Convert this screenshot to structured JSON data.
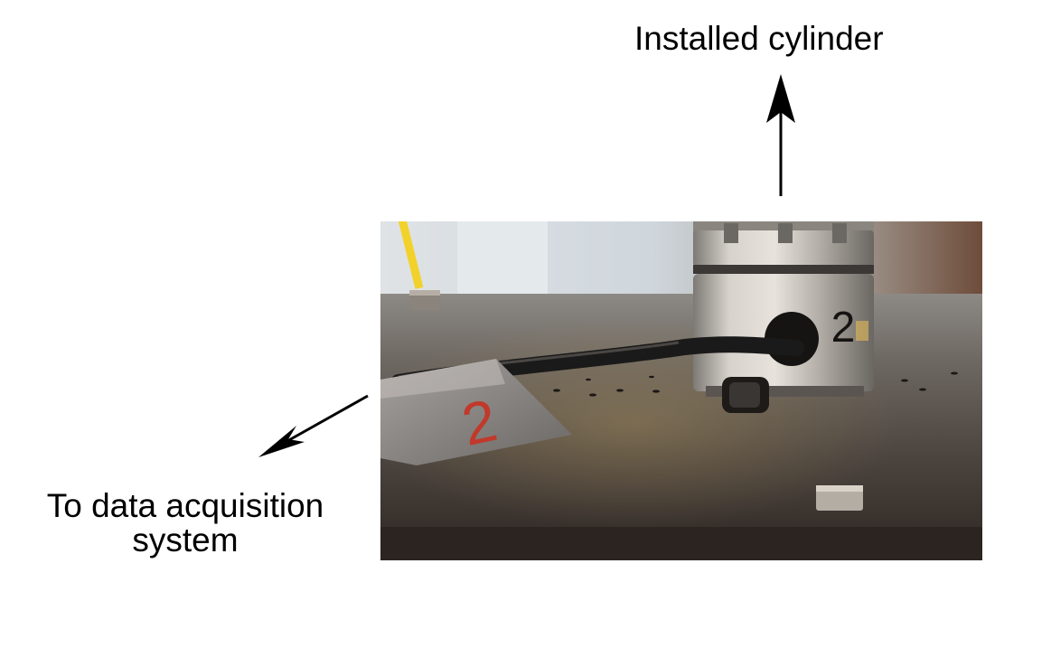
{
  "annotations": {
    "top_label": "Installed cylinder",
    "bottom_label_line1": "To data acquisition",
    "bottom_label_line2": "system"
  },
  "photo": {
    "sticker_text": "2",
    "sensor_text": "2"
  },
  "colors": {
    "arrow": "#000000",
    "table_surface": "#4a4440",
    "sensor_metal": "#b9b5ae",
    "cable": "#1a1a1a",
    "tape": "#8e8a87",
    "tape_mark": "#c0392b",
    "yellow_pole": "#f2d22a"
  }
}
